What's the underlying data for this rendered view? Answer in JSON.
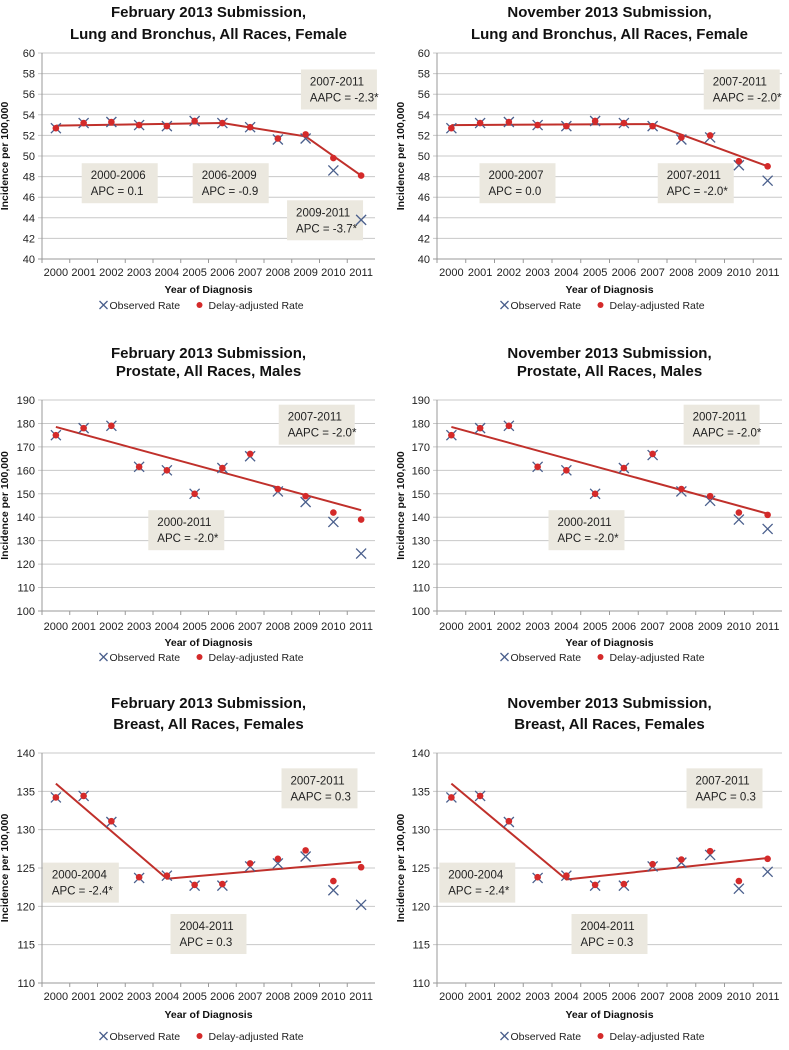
{
  "colors": {
    "observed": "#4a5f8c",
    "delay": "#d42a2a",
    "fit": "#c0302b",
    "grid": "#c8c8c8",
    "box": "#ebe8df"
  },
  "chart_data": [
    {
      "type": "line",
      "title": [
        "February 2013 Submission,",
        "Lung and Bronchus, All Races, Female"
      ],
      "xlabel": "Year of Diagnosis",
      "ylabel": "Incidence per 100,000",
      "ylim": [
        40,
        60
      ],
      "ystep": 2,
      "grid": true,
      "legend": "bottom",
      "categories": [
        "2000",
        "2001",
        "2002",
        "2003",
        "2004",
        "2005",
        "2006",
        "2007",
        "2008",
        "2009",
        "2010",
        "2011"
      ],
      "series": [
        {
          "name": "Observed Rate",
          "values": [
            52.7,
            53.2,
            53.3,
            53.0,
            52.9,
            53.4,
            53.2,
            52.8,
            51.6,
            51.7,
            48.6,
            43.8
          ]
        },
        {
          "name": "Delay-adjusted Rate",
          "values": [
            52.7,
            53.2,
            53.3,
            53.0,
            52.9,
            53.4,
            53.2,
            52.8,
            51.7,
            52.1,
            49.8,
            48.1
          ]
        }
      ],
      "fit": {
        "x": [
          2000,
          2006,
          2009,
          2011
        ],
        "y": [
          52.95,
          53.2,
          51.9,
          48.1
        ]
      },
      "annotations": [
        [
          "2000-2006",
          "APC = 0.1"
        ],
        [
          "2006-2009",
          "APC = -0.9"
        ],
        [
          "2009-2011",
          "APC = -3.7*"
        ],
        [
          "2007-2011",
          "AAPC = -2.3*"
        ]
      ]
    },
    {
      "type": "line",
      "title": [
        "November 2013 Submission,",
        "Lung and Bronchus, All Races, Female"
      ],
      "xlabel": "Year of Diagnosis",
      "ylabel": "Incidence per 100,000",
      "ylim": [
        40,
        60
      ],
      "ystep": 2,
      "grid": true,
      "legend": "bottom",
      "categories": [
        "2000",
        "2001",
        "2002",
        "2003",
        "2004",
        "2005",
        "2006",
        "2007",
        "2008",
        "2009",
        "2010",
        "2011"
      ],
      "series": [
        {
          "name": "Observed Rate",
          "values": [
            52.7,
            53.2,
            53.3,
            53.0,
            52.9,
            53.4,
            53.2,
            52.9,
            51.6,
            51.8,
            49.1,
            47.6
          ]
        },
        {
          "name": "Delay-adjusted Rate",
          "values": [
            52.7,
            53.2,
            53.3,
            53.0,
            52.9,
            53.4,
            53.2,
            52.9,
            51.8,
            52.0,
            49.5,
            49.0
          ]
        }
      ],
      "fit": {
        "x": [
          2000,
          2007,
          2011
        ],
        "y": [
          53.0,
          53.1,
          49.0
        ]
      },
      "annotations": [
        [
          "2000-2007",
          "APC = 0.0"
        ],
        [
          "2007-2011",
          "APC = -2.0*"
        ],
        [
          "2007-2011",
          "AAPC = -2.0*"
        ]
      ]
    },
    {
      "type": "line",
      "title": [
        "February 2013 Submission,",
        "Prostate, All Races, Males"
      ],
      "xlabel": "Year of Diagnosis",
      "ylabel": "Incidence per 100,000",
      "ylim": [
        100,
        190
      ],
      "ystep": 10,
      "grid": true,
      "legend": "bottom",
      "categories": [
        "2000",
        "2001",
        "2002",
        "2003",
        "2004",
        "2005",
        "2006",
        "2007",
        "2008",
        "2009",
        "2010",
        "2011"
      ],
      "series": [
        {
          "name": "Observed Rate",
          "values": [
            175,
            178,
            179,
            161.5,
            160,
            150,
            161,
            166,
            151,
            146.5,
            138,
            124.5
          ]
        },
        {
          "name": "Delay-adjusted Rate",
          "values": [
            175,
            178,
            179,
            161.5,
            160,
            150,
            161,
            167,
            152,
            149,
            142,
            139
          ]
        }
      ],
      "fit": {
        "x": [
          2000,
          2011
        ],
        "y": [
          178.5,
          143
        ]
      },
      "annotations": [
        [
          "2000-2011",
          "APC = -2.0*"
        ],
        [
          "2007-2011",
          "AAPC = -2.0*"
        ]
      ]
    },
    {
      "type": "line",
      "title": [
        "November 2013 Submission,",
        "Prostate, All Races, Males"
      ],
      "xlabel": "Year of Diagnosis",
      "ylabel": "Incidence per 100,000",
      "ylim": [
        100,
        190
      ],
      "ystep": 10,
      "grid": true,
      "legend": "bottom",
      "categories": [
        "2000",
        "2001",
        "2002",
        "2003",
        "2004",
        "2005",
        "2006",
        "2007",
        "2008",
        "2009",
        "2010",
        "2011"
      ],
      "series": [
        {
          "name": "Observed Rate",
          "values": [
            175,
            178,
            179,
            161.5,
            160,
            150,
            161,
            166.5,
            151,
            147,
            139,
            135
          ]
        },
        {
          "name": "Delay-adjusted Rate",
          "values": [
            175,
            178,
            179,
            161.5,
            160,
            150,
            161,
            167,
            152,
            149,
            142,
            141
          ]
        }
      ],
      "fit": {
        "x": [
          2000,
          2011
        ],
        "y": [
          178.5,
          141.5
        ]
      },
      "annotations": [
        [
          "2000-2011",
          "APC = -2.0*"
        ],
        [
          "2007-2011",
          "AAPC = -2.0*"
        ]
      ]
    },
    {
      "type": "line",
      "title": [
        "February 2013 Submission,",
        "Breast, All Races, Females"
      ],
      "xlabel": "Year of Diagnosis",
      "ylabel": "Incidence per 100,000",
      "ylim": [
        110,
        140
      ],
      "ystep": 5,
      "grid": true,
      "legend": "bottom",
      "categories": [
        "2000",
        "2001",
        "2002",
        "2003",
        "2004",
        "2005",
        "2006",
        "2007",
        "2008",
        "2009",
        "2010",
        "2011"
      ],
      "series": [
        {
          "name": "Observed Rate",
          "values": [
            134.2,
            134.4,
            131.0,
            123.7,
            124.0,
            122.7,
            122.7,
            125.2,
            125.6,
            126.5,
            122.1,
            120.2
          ]
        },
        {
          "name": "Delay-adjusted Rate",
          "values": [
            134.2,
            134.4,
            131.1,
            123.8,
            124.0,
            122.8,
            122.9,
            125.6,
            126.2,
            127.3,
            123.3,
            125.1
          ]
        }
      ],
      "fit": {
        "x": [
          2000,
          2004,
          2011
        ],
        "y": [
          136.0,
          123.6,
          125.8
        ]
      },
      "annotations": [
        [
          "2000-2004",
          "APC = -2.4*"
        ],
        [
          "2004-2011",
          "APC = 0.3"
        ],
        [
          "2007-2011",
          "AAPC = 0.3"
        ]
      ]
    },
    {
      "type": "line",
      "title": [
        "November 2013 Submission,",
        "Breast, All Races, Females"
      ],
      "xlabel": "Year of Diagnosis",
      "ylabel": "Incidence per 100,000",
      "ylim": [
        110,
        140
      ],
      "ystep": 5,
      "grid": true,
      "legend": "bottom",
      "categories": [
        "2000",
        "2001",
        "2002",
        "2003",
        "2004",
        "2005",
        "2006",
        "2007",
        "2008",
        "2009",
        "2010",
        "2011"
      ],
      "series": [
        {
          "name": "Observed Rate",
          "values": [
            134.2,
            134.4,
            131.0,
            123.7,
            124.0,
            122.7,
            122.7,
            125.2,
            125.7,
            126.7,
            122.3,
            124.5
          ]
        },
        {
          "name": "Delay-adjusted Rate",
          "values": [
            134.2,
            134.4,
            131.1,
            123.8,
            124.0,
            122.8,
            122.9,
            125.5,
            126.1,
            127.2,
            123.3,
            126.2
          ]
        }
      ],
      "fit": {
        "x": [
          2000,
          2004,
          2011
        ],
        "y": [
          136.0,
          123.5,
          126.3
        ]
      },
      "annotations": [
        [
          "2000-2004",
          "APC = -2.4*"
        ],
        [
          "2004-2011",
          "APC = 0.3"
        ],
        [
          "2007-2011",
          "AAPC = 0.3"
        ]
      ]
    }
  ]
}
